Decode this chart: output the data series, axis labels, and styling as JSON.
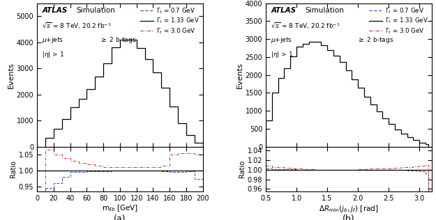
{
  "panel_a": {
    "xlabel": "m$_{\\ell b}$ [GeV]",
    "ylabel_main": "Events",
    "ylabel_ratio": "Ratio",
    "xlim": [
      0,
      200
    ],
    "ylim_main": [
      0,
      5500
    ],
    "ylim_ratio": [
      0.935,
      1.075
    ],
    "yticks_main": [
      0,
      1000,
      2000,
      3000,
      4000,
      5000
    ],
    "xticks": [
      0,
      20,
      40,
      60,
      80,
      100,
      120,
      140,
      160,
      180,
      200
    ],
    "yticks_ratio": [
      0.95,
      1.0,
      1.05
    ],
    "bin_edges": [
      10,
      20,
      30,
      40,
      50,
      60,
      70,
      80,
      90,
      100,
      110,
      120,
      130,
      140,
      150,
      160,
      170,
      180,
      190,
      200
    ],
    "hist_nominal": [
      330,
      680,
      1050,
      1500,
      1820,
      2200,
      2700,
      3200,
      3800,
      4100,
      4100,
      3780,
      3350,
      2850,
      2250,
      1530,
      900,
      430,
      160
    ],
    "ratio_07": [
      0.945,
      0.96,
      0.98,
      0.995,
      0.995,
      0.997,
      0.998,
      0.999,
      1.0,
      1.0,
      1.0,
      1.0,
      1.0,
      1.0,
      0.999,
      0.995,
      0.995,
      0.998,
      0.975
    ],
    "ratio_30": [
      1.065,
      1.05,
      1.04,
      1.03,
      1.025,
      1.02,
      1.015,
      1.012,
      1.01,
      1.01,
      1.01,
      1.01,
      1.01,
      1.012,
      1.015,
      1.05,
      1.055,
      1.055,
      1.05
    ]
  },
  "panel_b": {
    "xlabel": "$\\Delta R_{\\rm min}(j_b, j_\\ell)$ [rad]",
    "ylabel_main": "Events",
    "ylabel_ratio": "Ratio",
    "xlim": [
      0.5,
      3.2
    ],
    "ylim_main": [
      0,
      4000
    ],
    "ylim_ratio": [
      0.955,
      1.048
    ],
    "yticks_main": [
      0,
      500,
      1000,
      1500,
      2000,
      2500,
      3000,
      3500,
      4000
    ],
    "xticks": [
      0.5,
      1.0,
      1.5,
      2.0,
      2.5,
      3.0
    ],
    "yticks_ratio": [
      0.96,
      0.98,
      1.0,
      1.02,
      1.04
    ],
    "bin_edges": [
      0.5,
      0.6,
      0.7,
      0.8,
      0.9,
      1.0,
      1.1,
      1.2,
      1.3,
      1.4,
      1.5,
      1.6,
      1.7,
      1.8,
      1.9,
      2.0,
      2.1,
      2.2,
      2.3,
      2.4,
      2.5,
      2.6,
      2.7,
      2.8,
      2.9,
      3.0,
      3.1,
      3.15
    ],
    "hist_nominal": [
      730,
      1510,
      1920,
      2180,
      2510,
      2790,
      2870,
      2930,
      2920,
      2830,
      2700,
      2540,
      2370,
      2130,
      1880,
      1640,
      1400,
      1180,
      980,
      790,
      630,
      480,
      355,
      255,
      180,
      110,
      65
    ],
    "ratio_07": [
      1.002,
      1.001,
      1.001,
      1.001,
      1.001,
      1.0,
      1.0,
      1.0,
      1.0,
      1.0,
      1.0,
      1.0,
      1.0,
      1.0,
      1.0,
      1.0,
      1.0,
      1.0,
      0.999,
      0.999,
      0.999,
      0.999,
      0.999,
      0.998,
      0.998,
      0.997,
      0.993
    ],
    "ratio_30": [
      1.008,
      1.006,
      1.005,
      1.004,
      1.003,
      1.002,
      1.001,
      1.001,
      1.0,
      1.0,
      1.0,
      1.0,
      1.0,
      1.0,
      1.0,
      1.001,
      1.001,
      1.002,
      1.002,
      1.003,
      1.003,
      1.004,
      1.005,
      1.006,
      1.007,
      1.008,
      1.01
    ]
  },
  "color_nominal": "#000000",
  "color_07": "#4444bb",
  "color_30": "#cc2222",
  "label_07": "$\\Gamma_t$ = 0.7 GeV",
  "label_133": "$\\Gamma_t$ = 1.33 GeV",
  "label_30": "$\\Gamma_t$ = 3.0 GeV"
}
